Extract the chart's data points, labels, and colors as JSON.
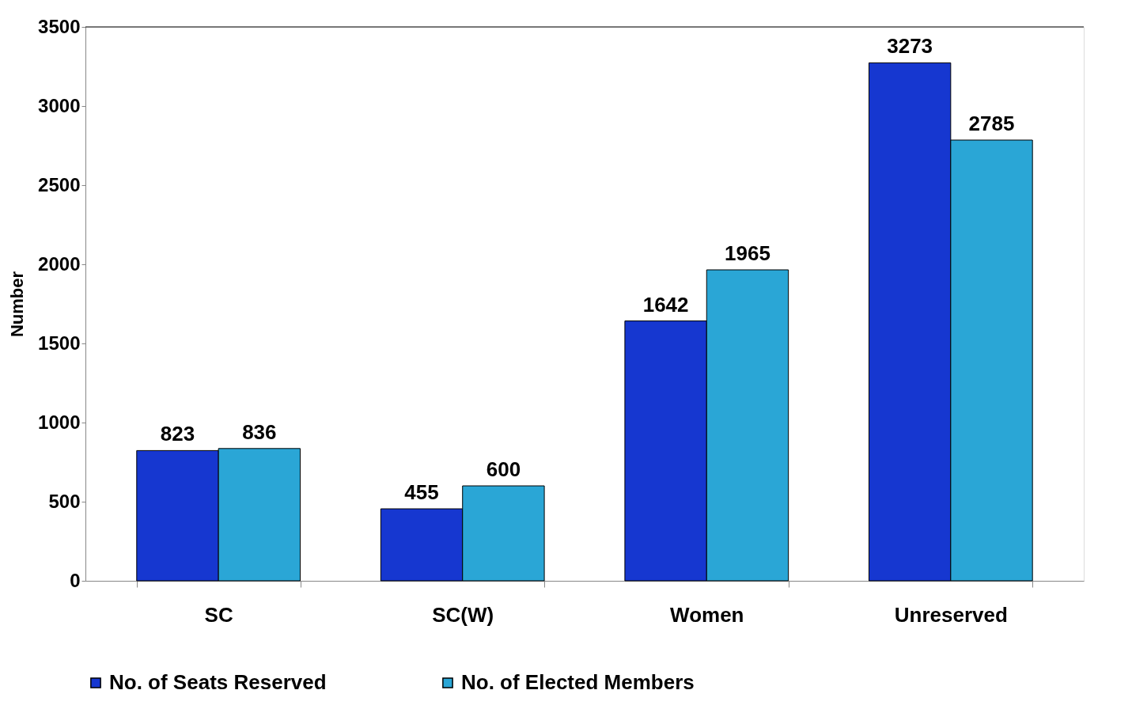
{
  "chart_data": {
    "type": "bar",
    "ylabel": "Number",
    "categories": [
      "SC",
      "SC(W)",
      "Women",
      "Unreserved"
    ],
    "series": [
      {
        "name": "No. of Seats Reserved",
        "color": "#1637d0",
        "values": [
          823,
          455,
          1642,
          3273
        ]
      },
      {
        "name": "No. of Elected Members",
        "color": "#2aa6d6",
        "values": [
          836,
          600,
          1965,
          2785
        ]
      }
    ],
    "ylim": [
      0,
      3500
    ],
    "yticks": [
      0,
      500,
      1000,
      1500,
      2000,
      2500,
      3000,
      3500
    ],
    "data_labels": true,
    "legend": "bottom",
    "grid": false
  }
}
